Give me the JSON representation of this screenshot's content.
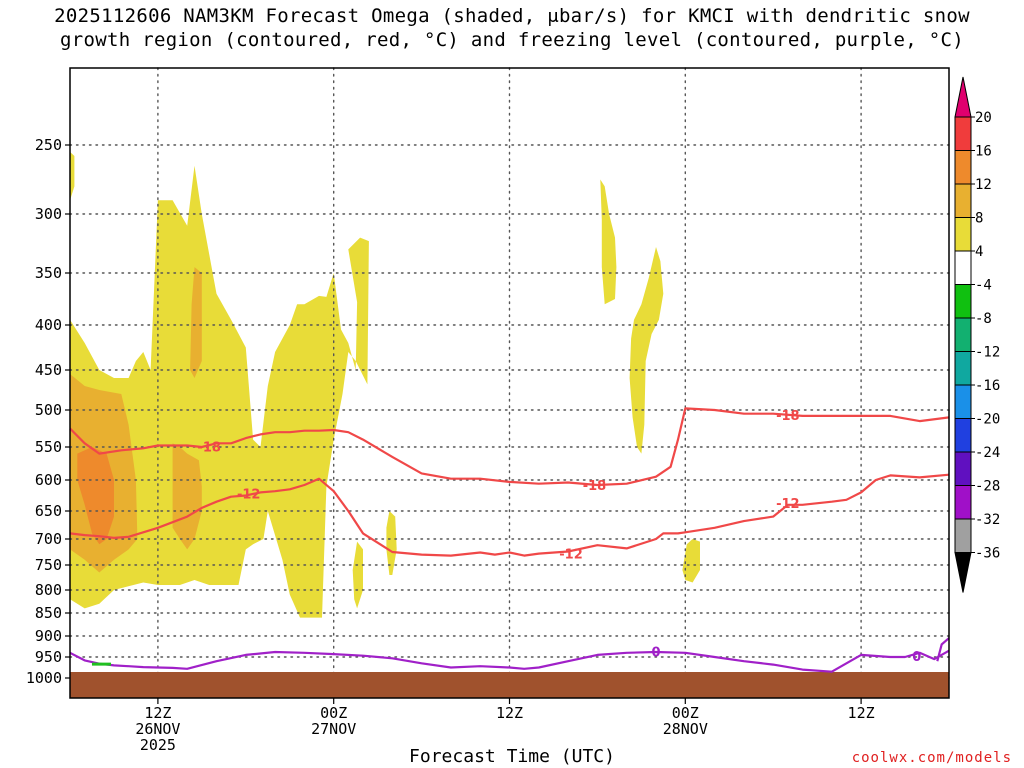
{
  "chart_data": {
    "type": "heatmap",
    "title_line1": "2025112606 NAM3KM Forecast Omega (shaded, μbar/s) for KMCI with dendritic snow",
    "title_line2": "growth region (contoured, red, °C) and freezing level (contoured, purple, °C)",
    "xlabel": "Forecast Time (UTC)",
    "ylabel": "",
    "y_axis": {
      "reverse": true,
      "range": [
        1000,
        200
      ],
      "ticks": [
        250,
        300,
        350,
        400,
        450,
        500,
        550,
        600,
        650,
        700,
        750,
        800,
        850,
        900,
        950,
        1000
      ]
    },
    "x_axis": {
      "range_hours": [
        6,
        66
      ],
      "ticks": [
        {
          "hour": 12,
          "line1": "12Z",
          "line2": "26NOV",
          "line3": "2025"
        },
        {
          "hour": 24,
          "line1": "00Z",
          "line2": "27NOV",
          "line3": ""
        },
        {
          "hour": 36,
          "line1": "12Z",
          "line2": "",
          "line3": ""
        },
        {
          "hour": 48,
          "line1": "00Z",
          "line2": "28NOV",
          "line3": ""
        },
        {
          "hour": 60,
          "line1": "12Z",
          "line2": "",
          "line3": ""
        }
      ]
    },
    "colorbar": {
      "labels": [
        "20",
        "16",
        "12",
        "8",
        "4",
        "-4",
        "-8",
        "-12",
        "-16",
        "-20",
        "-24",
        "-28",
        "-32",
        "-36"
      ],
      "colors": [
        "#e0006e",
        "#f03c3c",
        "#ee8a2c",
        "#e8b030",
        "#e8dc38",
        "#ffffff",
        "#10c010",
        "#12b070",
        "#10a8a0",
        "#1a90e8",
        "#2040e0",
        "#6010c0",
        "#a010c8",
        "#a0a0a0",
        "#000000"
      ]
    },
    "series": [
      {
        "name": "-18",
        "type": "isotherm",
        "color": "#f04848",
        "x": [
          6,
          7,
          8,
          9.5,
          11,
          12,
          13,
          14,
          15,
          16,
          17,
          18,
          19,
          20,
          21,
          22,
          23,
          24,
          25,
          26,
          28,
          30,
          32,
          34,
          36,
          38,
          40,
          42,
          44,
          46,
          47,
          47.5,
          48,
          50,
          52,
          54,
          56,
          58,
          60,
          62,
          64,
          66
        ],
        "p": [
          525,
          545,
          560,
          555,
          552,
          548,
          548,
          548,
          550,
          545,
          545,
          538,
          533,
          530,
          530,
          528,
          528,
          527,
          530,
          540,
          565,
          590,
          598,
          598,
          603,
          606,
          604,
          608,
          606,
          595,
          580,
          540,
          498,
          500,
          505,
          505,
          508,
          508,
          508,
          508,
          515,
          510
        ]
      },
      {
        "name": "-12",
        "type": "isotherm",
        "color": "#f04848",
        "x": [
          6,
          7,
          8,
          9,
          10,
          11,
          12,
          13,
          14,
          15,
          16,
          17,
          18,
          19,
          20,
          21,
          22,
          23,
          24,
          25,
          26,
          28,
          30,
          32,
          34,
          35,
          36,
          37,
          38,
          40,
          42,
          44,
          46,
          46.5,
          47,
          47.5,
          48,
          50,
          52,
          54,
          55,
          56,
          58,
          59,
          60,
          61,
          62,
          64,
          66
        ],
        "p": [
          690,
          693,
          695,
          698,
          696,
          688,
          680,
          670,
          660,
          645,
          635,
          627,
          625,
          620,
          618,
          615,
          608,
          598,
          618,
          650,
          690,
          725,
          730,
          732,
          726,
          730,
          726,
          732,
          728,
          724,
          712,
          718,
          700,
          690,
          690,
          690,
          688,
          680,
          668,
          660,
          640,
          640,
          635,
          632,
          620,
          600,
          593,
          596,
          592
        ]
      },
      {
        "name": "0",
        "type": "freezing",
        "color": "#a020c8",
        "x": [
          6,
          7,
          8,
          9,
          10,
          11,
          12,
          13,
          14,
          16,
          18,
          20,
          22,
          24,
          26,
          28,
          30,
          32,
          34,
          36,
          37,
          38,
          40,
          42,
          44,
          46,
          48,
          50,
          52,
          54,
          56,
          58,
          60,
          62,
          63,
          64,
          65,
          66
        ],
        "p": [
          940,
          958,
          966,
          970,
          972,
          974,
          975,
          976,
          978,
          960,
          945,
          938,
          940,
          943,
          947,
          953,
          965,
          975,
          972,
          975,
          978,
          975,
          960,
          945,
          940,
          938,
          940,
          950,
          960,
          968,
          980,
          985,
          945,
          950,
          950,
          940,
          955,
          935
        ]
      }
    ],
    "annotations": {
      "isotherm_labels": [
        "-18",
        "-12",
        "-18",
        "-12",
        "-18",
        "-12"
      ],
      "freezing_labels": [
        "0",
        "0"
      ]
    }
  },
  "credit": "coolwx.com/models"
}
